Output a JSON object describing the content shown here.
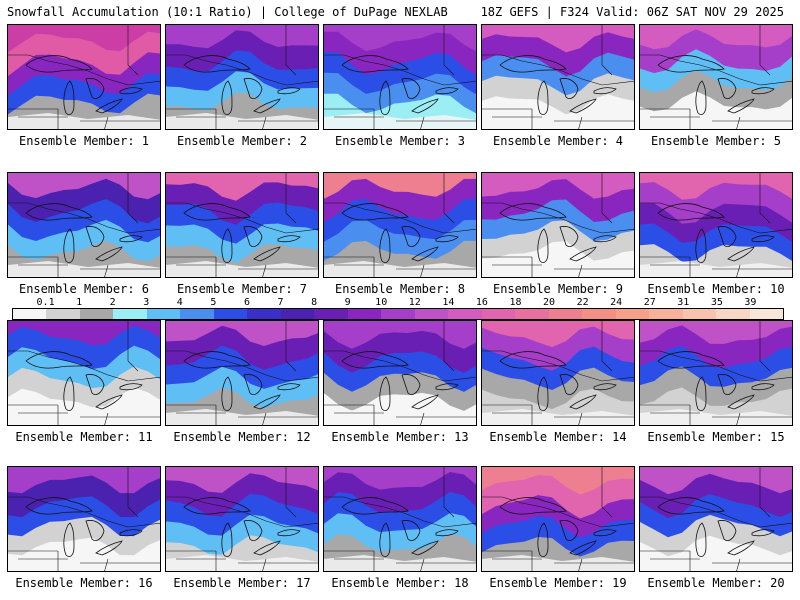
{
  "header": {
    "title": "Snowfall Accumulation (10:1 Ratio) | College of DuPage NEXLAB",
    "run_info": "18Z GEFS | F324 Valid: 06Z SAT NOV 29 2025"
  },
  "colorbar": {
    "labels": [
      "0.1",
      "1",
      "2",
      "3",
      "4",
      "5",
      "6",
      "7",
      "8",
      "9",
      "10",
      "12",
      "14",
      "16",
      "18",
      "20",
      "22",
      "24",
      "27",
      "31",
      "35",
      "39"
    ],
    "colors": [
      "#f6f6f6",
      "#d2d2d2",
      "#a8a8a8",
      "#9aeef4",
      "#5fbff5",
      "#4a8ff0",
      "#2b4ee6",
      "#3a2fc8",
      "#4b22b0",
      "#6a1fb4",
      "#8a26c0",
      "#a53ec8",
      "#c052c8",
      "#d45bbf",
      "#e064ae",
      "#e8709e",
      "#ee7f90",
      "#f29086",
      "#f5a08a",
      "#f6b29a",
      "#f6c4ae",
      "#f7d6c4",
      "#f8e6d8"
    ]
  },
  "members": [
    {
      "label": "Ensemble Member: 1",
      "scheme": [
        "#cc3ea6",
        "#e05aa6",
        "#8a26c0",
        "#2b4ee6",
        "#a8a8a8"
      ]
    },
    {
      "label": "Ensemble Member: 2",
      "scheme": [
        "#a53ec8",
        "#6a1fb4",
        "#2b4ee6",
        "#5fbff5",
        "#a8a8a8"
      ]
    },
    {
      "label": "Ensemble Member: 3",
      "scheme": [
        "#a53ec8",
        "#8a26c0",
        "#2b4ee6",
        "#4a8ff0",
        "#9aeef4"
      ]
    },
    {
      "label": "Ensemble Member: 4",
      "scheme": [
        "#d45bbf",
        "#8a26c0",
        "#4a8ff0",
        "#d2d2d2",
        "#f6f6f6"
      ]
    },
    {
      "label": "Ensemble Member: 5",
      "scheme": [
        "#d45bbf",
        "#a53ec8",
        "#5fbff5",
        "#a8a8a8",
        "#f6f6f6"
      ]
    },
    {
      "label": "Ensemble Member: 6",
      "scheme": [
        "#c052c8",
        "#4b22b0",
        "#2b4ee6",
        "#5fbff5",
        "#a8a8a8"
      ]
    },
    {
      "label": "Ensemble Member: 7",
      "scheme": [
        "#e064ae",
        "#6a1fb4",
        "#2b4ee6",
        "#5fbff5",
        "#a8a8a8"
      ]
    },
    {
      "label": "Ensemble Member: 8",
      "scheme": [
        "#ee7f90",
        "#8a26c0",
        "#2b4ee6",
        "#4a8ff0",
        "#a8a8a8"
      ]
    },
    {
      "label": "Ensemble Member: 9",
      "scheme": [
        "#d45bbf",
        "#8a26c0",
        "#4a8ff0",
        "#d2d2d2",
        "#f6f6f6"
      ]
    },
    {
      "label": "Ensemble Member: 10",
      "scheme": [
        "#e064ae",
        "#a53ec8",
        "#6a1fb4",
        "#2b4ee6",
        "#d2d2d2"
      ]
    },
    {
      "label": "Ensemble Member: 11",
      "scheme": [
        "#8a26c0",
        "#2b4ee6",
        "#5fbff5",
        "#d2d2d2",
        "#f6f6f6"
      ]
    },
    {
      "label": "Ensemble Member: 12",
      "scheme": [
        "#c052c8",
        "#6a1fb4",
        "#2b4ee6",
        "#5fbff5",
        "#a8a8a8"
      ]
    },
    {
      "label": "Ensemble Member: 13",
      "scheme": [
        "#a53ec8",
        "#6a1fb4",
        "#2b4ee6",
        "#a8a8a8",
        "#f6f6f6"
      ]
    },
    {
      "label": "Ensemble Member: 14",
      "scheme": [
        "#e064ae",
        "#a53ec8",
        "#2b4ee6",
        "#a8a8a8",
        "#d2d2d2"
      ]
    },
    {
      "label": "Ensemble Member: 15",
      "scheme": [
        "#c052c8",
        "#8a26c0",
        "#2b4ee6",
        "#a8a8a8",
        "#d2d2d2"
      ]
    },
    {
      "label": "Ensemble Member: 16",
      "scheme": [
        "#a53ec8",
        "#4b22b0",
        "#2b4ee6",
        "#d2d2d2",
        "#f6f6f6"
      ]
    },
    {
      "label": "Ensemble Member: 17",
      "scheme": [
        "#c052c8",
        "#6a1fb4",
        "#2b4ee6",
        "#5fbff5",
        "#d2d2d2"
      ]
    },
    {
      "label": "Ensemble Member: 18",
      "scheme": [
        "#a53ec8",
        "#6a1fb4",
        "#2b4ee6",
        "#5fbff5",
        "#a8a8a8"
      ]
    },
    {
      "label": "Ensemble Member: 19",
      "scheme": [
        "#ee7f90",
        "#e064ae",
        "#8a26c0",
        "#2b4ee6",
        "#a8a8a8"
      ]
    },
    {
      "label": "Ensemble Member: 20",
      "scheme": [
        "#c052c8",
        "#6a1fb4",
        "#2b4ee6",
        "#d2d2d2",
        "#f6f6f6"
      ]
    }
  ]
}
